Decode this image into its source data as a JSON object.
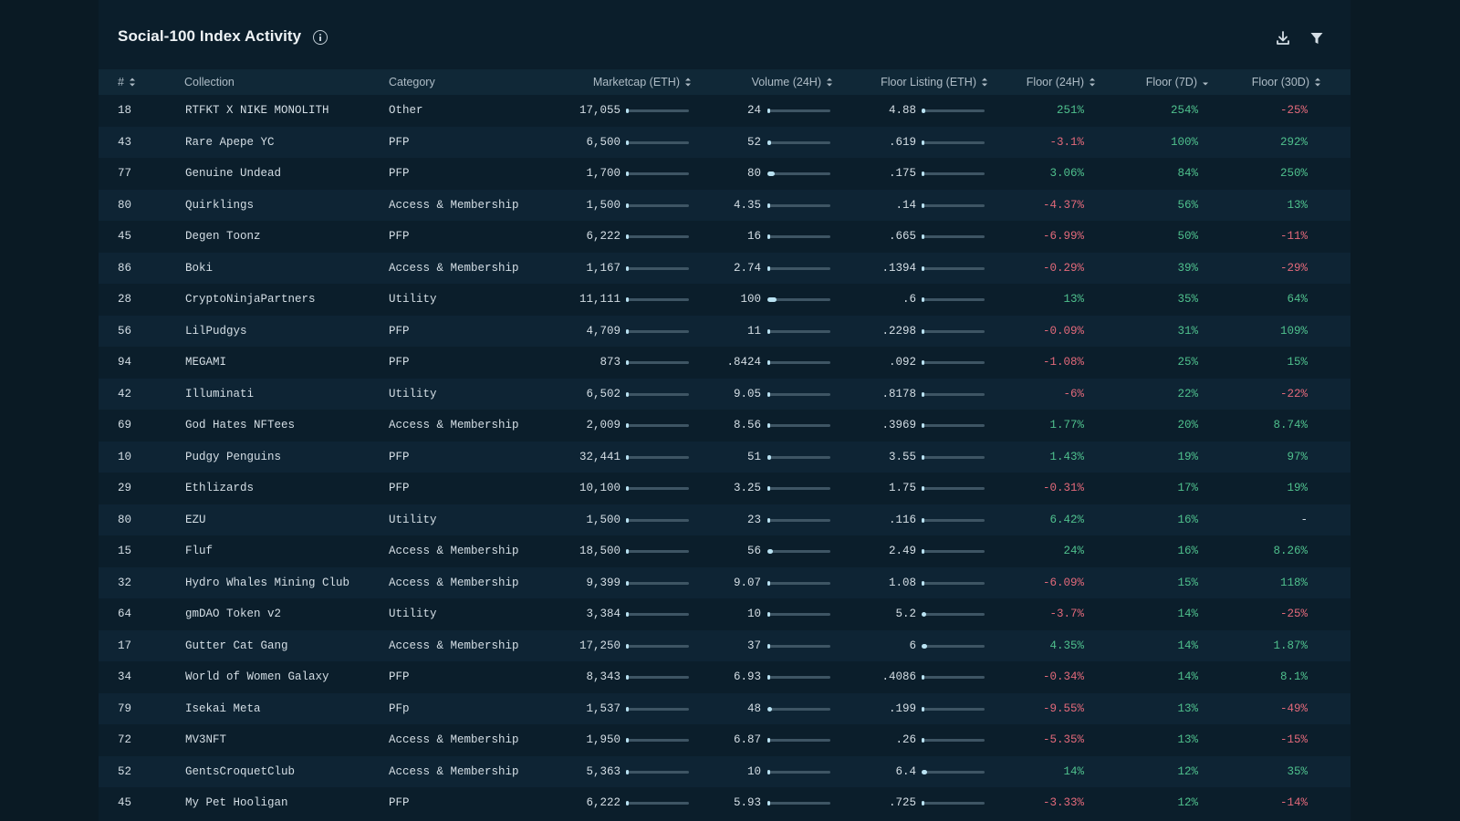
{
  "title": "Social-100 Index Activity",
  "colors": {
    "positive": "#4fc08d",
    "negative": "#e2697a",
    "accent": "#b9e2f2"
  },
  "columns": {
    "rank": "#",
    "collection": "Collection",
    "category": "Category",
    "marketcap": "Marketcap (ETH)",
    "volume": "Volume (24H)",
    "floor_listing": "Floor Listing (ETH)",
    "floor_24h": "Floor (24H)",
    "floor_7d": "Floor (7D)",
    "floor_30d": "Floor (30D)"
  },
  "rows": [
    {
      "rank": "18",
      "collection": "RTFKT X NIKE MONOLITH",
      "category": "Other",
      "marketcap": "17,055",
      "mc_bar": 0.03,
      "volume": "24",
      "vol_bar": 0.03,
      "floor_listing": "4.88",
      "fl_bar": 0.06,
      "floor_24h": "251%",
      "floor_7d": "254%",
      "floor_30d": "-25%"
    },
    {
      "rank": "43",
      "collection": "Rare Apepe YC",
      "category": "PFP",
      "marketcap": "6,500",
      "mc_bar": 0.0,
      "volume": "52",
      "vol_bar": 0.06,
      "floor_listing": ".619",
      "fl_bar": 0.0,
      "floor_24h": "-3.1%",
      "floor_7d": "100%",
      "floor_30d": "292%"
    },
    {
      "rank": "77",
      "collection": "Genuine Undead",
      "category": "PFP",
      "marketcap": "1,700",
      "mc_bar": 0.0,
      "volume": "80",
      "vol_bar": 0.12,
      "floor_listing": ".175",
      "fl_bar": 0.0,
      "floor_24h": "3.06%",
      "floor_7d": "84%",
      "floor_30d": "250%"
    },
    {
      "rank": "80",
      "collection": "Quirklings",
      "category": "Access & Membership",
      "marketcap": "1,500",
      "mc_bar": 0.0,
      "volume": "4.35",
      "vol_bar": 0.0,
      "floor_listing": ".14",
      "fl_bar": 0.0,
      "floor_24h": "-4.37%",
      "floor_7d": "56%",
      "floor_30d": "13%"
    },
    {
      "rank": "45",
      "collection": "Degen Toonz",
      "category": "PFP",
      "marketcap": "6,222",
      "mc_bar": 0.0,
      "volume": "16",
      "vol_bar": 0.02,
      "floor_listing": ".665",
      "fl_bar": 0.0,
      "floor_24h": "-6.99%",
      "floor_7d": "50%",
      "floor_30d": "-11%"
    },
    {
      "rank": "86",
      "collection": "Boki",
      "category": "Access & Membership",
      "marketcap": "1,167",
      "mc_bar": 0.0,
      "volume": "2.74",
      "vol_bar": 0.0,
      "floor_listing": ".1394",
      "fl_bar": 0.0,
      "floor_24h": "-0.29%",
      "floor_7d": "39%",
      "floor_30d": "-29%"
    },
    {
      "rank": "28",
      "collection": "CryptoNinjaPartners",
      "category": "Utility",
      "marketcap": "11,111",
      "mc_bar": 0.02,
      "volume": "100",
      "vol_bar": 0.14,
      "floor_listing": ".6",
      "fl_bar": 0.0,
      "floor_24h": "13%",
      "floor_7d": "35%",
      "floor_30d": "64%"
    },
    {
      "rank": "56",
      "collection": "LilPudgys",
      "category": "PFP",
      "marketcap": "4,709",
      "mc_bar": 0.0,
      "volume": "11",
      "vol_bar": 0.02,
      "floor_listing": ".2298",
      "fl_bar": 0.0,
      "floor_24h": "-0.09%",
      "floor_7d": "31%",
      "floor_30d": "109%"
    },
    {
      "rank": "94",
      "collection": "MEGAMI",
      "category": "PFP",
      "marketcap": "873",
      "mc_bar": 0.0,
      "volume": ".8424",
      "vol_bar": 0.0,
      "floor_listing": ".092",
      "fl_bar": 0.0,
      "floor_24h": "-1.08%",
      "floor_7d": "25%",
      "floor_30d": "15%"
    },
    {
      "rank": "42",
      "collection": "Illuminati",
      "category": "Utility",
      "marketcap": "6,502",
      "mc_bar": 0.0,
      "volume": "9.05",
      "vol_bar": 0.0,
      "floor_listing": ".8178",
      "fl_bar": 0.0,
      "floor_24h": "-6%",
      "floor_7d": "22%",
      "floor_30d": "-22%"
    },
    {
      "rank": "69",
      "collection": "God Hates NFTees",
      "category": "Access & Membership",
      "marketcap": "2,009",
      "mc_bar": 0.0,
      "volume": "8.56",
      "vol_bar": 0.0,
      "floor_listing": ".3969",
      "fl_bar": 0.0,
      "floor_24h": "1.77%",
      "floor_7d": "20%",
      "floor_30d": "8.74%"
    },
    {
      "rank": "10",
      "collection": "Pudgy Penguins",
      "category": "PFP",
      "marketcap": "32,441",
      "mc_bar": 0.05,
      "volume": "51",
      "vol_bar": 0.06,
      "floor_listing": "3.55",
      "fl_bar": 0.05,
      "floor_24h": "1.43%",
      "floor_7d": "19%",
      "floor_30d": "97%"
    },
    {
      "rank": "29",
      "collection": "Ethlizards",
      "category": "PFP",
      "marketcap": "10,100",
      "mc_bar": 0.02,
      "volume": "3.25",
      "vol_bar": 0.0,
      "floor_listing": "1.75",
      "fl_bar": 0.02,
      "floor_24h": "-0.31%",
      "floor_7d": "17%",
      "floor_30d": "19%"
    },
    {
      "rank": "80",
      "collection": "EZU",
      "category": "Utility",
      "marketcap": "1,500",
      "mc_bar": 0.0,
      "volume": "23",
      "vol_bar": 0.03,
      "floor_listing": ".116",
      "fl_bar": 0.0,
      "floor_24h": "6.42%",
      "floor_7d": "16%",
      "floor_30d": "-"
    },
    {
      "rank": "15",
      "collection": "Fluf",
      "category": "Access & Membership",
      "marketcap": "18,500",
      "mc_bar": 0.03,
      "volume": "56",
      "vol_bar": 0.08,
      "floor_listing": "2.49",
      "fl_bar": 0.03,
      "floor_24h": "24%",
      "floor_7d": "16%",
      "floor_30d": "8.26%"
    },
    {
      "rank": "32",
      "collection": "Hydro Whales Mining Club",
      "category": "Access & Membership",
      "marketcap": "9,399",
      "mc_bar": 0.0,
      "volume": "9.07",
      "vol_bar": 0.0,
      "floor_listing": "1.08",
      "fl_bar": 0.0,
      "floor_24h": "-6.09%",
      "floor_7d": "15%",
      "floor_30d": "118%"
    },
    {
      "rank": "64",
      "collection": "gmDAO Token v2",
      "category": "Utility",
      "marketcap": "3,384",
      "mc_bar": 0.0,
      "volume": "10",
      "vol_bar": 0.02,
      "floor_listing": "5.2",
      "fl_bar": 0.07,
      "floor_24h": "-3.7%",
      "floor_7d": "14%",
      "floor_30d": "-25%"
    },
    {
      "rank": "17",
      "collection": "Gutter Cat Gang",
      "category": "Access & Membership",
      "marketcap": "17,250",
      "mc_bar": 0.03,
      "volume": "37",
      "vol_bar": 0.05,
      "floor_listing": "6",
      "fl_bar": 0.08,
      "floor_24h": "4.35%",
      "floor_7d": "14%",
      "floor_30d": "1.87%"
    },
    {
      "rank": "34",
      "collection": "World of Women Galaxy",
      "category": "PFP",
      "marketcap": "8,343",
      "mc_bar": 0.0,
      "volume": "6.93",
      "vol_bar": 0.0,
      "floor_listing": ".4086",
      "fl_bar": 0.0,
      "floor_24h": "-0.34%",
      "floor_7d": "14%",
      "floor_30d": "8.1%"
    },
    {
      "rank": "79",
      "collection": "Isekai Meta",
      "category": "PFp",
      "marketcap": "1,537",
      "mc_bar": 0.0,
      "volume": "48",
      "vol_bar": 0.07,
      "floor_listing": ".199",
      "fl_bar": 0.0,
      "floor_24h": "-9.55%",
      "floor_7d": "13%",
      "floor_30d": "-49%"
    },
    {
      "rank": "72",
      "collection": "MV3NFT",
      "category": "Access & Membership",
      "marketcap": "1,950",
      "mc_bar": 0.0,
      "volume": "6.87",
      "vol_bar": 0.0,
      "floor_listing": ".26",
      "fl_bar": 0.0,
      "floor_24h": "-5.35%",
      "floor_7d": "13%",
      "floor_30d": "-15%"
    },
    {
      "rank": "52",
      "collection": "GentsCroquetClub",
      "category": "Access & Membership",
      "marketcap": "5,363",
      "mc_bar": 0.0,
      "volume": "10",
      "vol_bar": 0.02,
      "floor_listing": "6.4",
      "fl_bar": 0.08,
      "floor_24h": "14%",
      "floor_7d": "12%",
      "floor_30d": "35%"
    },
    {
      "rank": "45",
      "collection": "My Pet Hooligan",
      "category": "PFP",
      "marketcap": "6,222",
      "mc_bar": 0.0,
      "volume": "5.93",
      "vol_bar": 0.0,
      "floor_listing": ".725",
      "fl_bar": 0.0,
      "floor_24h": "-3.33%",
      "floor_7d": "12%",
      "floor_30d": "-14%"
    }
  ]
}
